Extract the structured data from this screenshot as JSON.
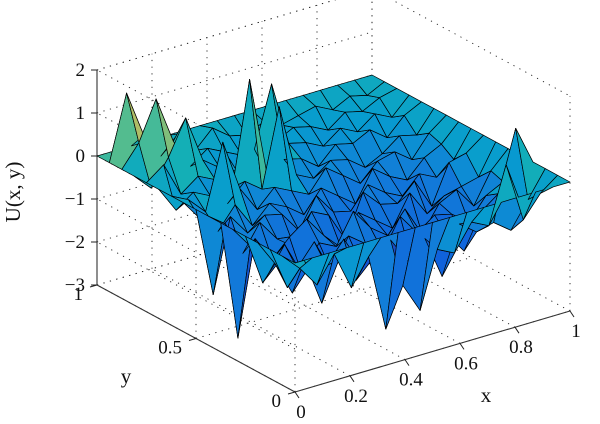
{
  "chart_data": {
    "type": "surface3d",
    "title": "",
    "xlabel": "x",
    "ylabel": "y",
    "zlabel": "U(x, y)",
    "xlim": [
      0,
      1
    ],
    "ylim": [
      0,
      1
    ],
    "zlim": [
      -3,
      2
    ],
    "x_ticks": [
      "0",
      "0.2",
      "0.4",
      "0.6",
      "0.8",
      "1"
    ],
    "y_ticks": [
      "0",
      "0.5",
      "1"
    ],
    "z_ticks": [
      "−3",
      "−2",
      "−1",
      "0",
      "1",
      "2"
    ],
    "grid": true,
    "colormap": "parula",
    "surface_edge_color": "#000000",
    "x": [
      0.0,
      0.0625,
      0.125,
      0.1875,
      0.25,
      0.3125,
      0.375,
      0.4375,
      0.5,
      0.5625,
      0.625,
      0.6875,
      0.75,
      0.8125,
      0.875,
      0.9375,
      1.0
    ],
    "y": [
      0.0,
      0.0625,
      0.125,
      0.1875,
      0.25,
      0.3125,
      0.375,
      0.4375,
      0.5,
      0.5625,
      0.625,
      0.6875,
      0.75,
      0.8125,
      0.875,
      0.9375,
      1.0
    ],
    "z": [
      [
        0.0,
        0.0,
        0.0,
        0.0,
        0.0,
        0.0,
        0.0,
        0.0,
        0.0,
        0.0,
        0.0,
        0.0,
        0.0,
        0.0,
        0.0,
        0.0,
        0.0
      ],
      [
        0.0,
        -0.4,
        -0.9,
        -0.3,
        -1.2,
        -0.6,
        -0.8,
        -1.5,
        -0.4,
        -0.9,
        -1.1,
        -0.5,
        -0.7,
        0.6,
        -0.8,
        -0.3,
        0.0
      ],
      [
        0.0,
        -1.0,
        -0.5,
        -1.6,
        -0.7,
        -1.3,
        -0.9,
        -0.6,
        -1.2,
        -0.8,
        -1.4,
        -0.7,
        -1.0,
        -0.9,
        1.1,
        -0.6,
        0.0
      ],
      [
        0.0,
        -0.6,
        -1.4,
        -0.9,
        -1.0,
        -0.5,
        -1.2,
        -1.3,
        -0.8,
        -1.5,
        -0.9,
        -1.1,
        -1.6,
        -0.8,
        -0.5,
        -0.9,
        0.0
      ],
      [
        0.0,
        -1.2,
        -0.8,
        -1.1,
        -0.6,
        -1.4,
        -0.7,
        -1.0,
        -1.3,
        -0.6,
        -1.1,
        -0.8,
        -0.9,
        -1.2,
        -0.7,
        -0.5,
        0.0
      ],
      [
        0.0,
        -0.5,
        -1.3,
        -0.7,
        -1.5,
        -0.9,
        -1.1,
        -0.4,
        -0.9,
        -1.2,
        -0.7,
        -1.4,
        -0.8,
        -0.6,
        -1.1,
        -0.4,
        0.0
      ],
      [
        0.0,
        -0.9,
        -0.6,
        -1.2,
        -0.8,
        -0.5,
        -1.0,
        -1.4,
        -0.7,
        -1.0,
        -1.3,
        -0.6,
        -1.2,
        -0.9,
        -0.8,
        -0.7,
        0.0
      ],
      [
        0.0,
        -0.3,
        -1.1,
        -0.5,
        -1.0,
        -1.3,
        -0.6,
        -0.8,
        -1.5,
        -0.5,
        -0.9,
        -1.0,
        -0.6,
        -1.3,
        -0.4,
        -0.3,
        0.0
      ],
      [
        0.0,
        -0.8,
        -0.4,
        -0.9,
        -0.6,
        -0.7,
        -1.2,
        -0.5,
        -1.0,
        -1.1,
        -0.6,
        -0.9,
        -1.1,
        -0.7,
        -0.9,
        -0.6,
        0.0
      ],
      [
        0.0,
        -0.5,
        -0.9,
        -0.4,
        -1.0,
        -0.6,
        -0.8,
        -1.1,
        -0.6,
        -0.9,
        -1.2,
        -0.5,
        -0.8,
        -1.0,
        -0.6,
        -0.4,
        0.0
      ],
      [
        0.0,
        -0.2,
        -0.6,
        -0.8,
        -0.3,
        -0.9,
        -0.5,
        -0.7,
        -0.9,
        -0.4,
        -0.7,
        -1.0,
        -0.6,
        -0.5,
        -0.8,
        -0.3,
        0.0
      ],
      [
        0.0,
        -0.6,
        -0.3,
        -0.5,
        -0.8,
        -0.4,
        -0.7,
        -0.3,
        -0.6,
        -0.8,
        -0.5,
        -0.6,
        -0.9,
        -0.7,
        -0.4,
        -0.5,
        0.0
      ],
      [
        0.0,
        0.3,
        -0.5,
        -0.2,
        -0.4,
        -0.7,
        -0.3,
        -0.6,
        -0.4,
        -0.5,
        -0.8,
        -0.4,
        -0.5,
        -0.3,
        -0.6,
        -0.2,
        0.0
      ],
      [
        0.0,
        -0.4,
        0.2,
        -0.5,
        -0.1,
        -0.4,
        -0.6,
        -0.2,
        -0.5,
        -0.3,
        -0.4,
        -0.6,
        -0.3,
        -0.5,
        -0.2,
        -0.4,
        0.0
      ],
      [
        0.0,
        0.5,
        -0.2,
        0.3,
        -0.4,
        -0.1,
        -0.3,
        -0.5,
        -0.2,
        -0.4,
        -0.2,
        -0.3,
        -0.5,
        -0.2,
        -0.3,
        -0.1,
        0.0
      ],
      [
        0.0,
        -0.1,
        0.4,
        -0.2,
        0.2,
        -0.3,
        0.1,
        -0.2,
        -0.3,
        -0.1,
        -0.3,
        -0.2,
        -0.1,
        -0.3,
        -0.1,
        -0.2,
        0.0
      ],
      [
        0.0,
        0.0,
        0.0,
        0.0,
        0.0,
        0.0,
        0.0,
        0.0,
        0.0,
        0.0,
        0.0,
        0.0,
        0.0,
        0.0,
        0.0,
        0.0,
        0.0
      ]
    ],
    "spikes": [
      {
        "x": 0.0625,
        "y": 0.9375,
        "z": 1.5
      },
      {
        "x": 0.125,
        "y": 0.875,
        "z": 1.4
      },
      {
        "x": 0.1875,
        "y": 0.8125,
        "z": 1.0
      },
      {
        "x": 0.375,
        "y": 0.75,
        "z": 1.7
      },
      {
        "x": 0.4375,
        "y": 0.6875,
        "z": 1.1
      },
      {
        "x": 0.5,
        "y": 0.8125,
        "z": 1.2
      },
      {
        "x": 0.1875,
        "y": 0.625,
        "z": 0.9
      },
      {
        "x": 0.0625,
        "y": 0.5,
        "z": -2.1
      },
      {
        "x": 0.0625,
        "y": 0.375,
        "z": -2.8
      },
      {
        "x": 0.9375,
        "y": 0.1875,
        "z": 0.9
      },
      {
        "x": 0.875,
        "y": 0.125,
        "z": -1.2
      },
      {
        "x": 0.5,
        "y": 0.0625,
        "z": -2.2
      },
      {
        "x": 0.375,
        "y": 0.0625,
        "z": -2.4
      },
      {
        "x": 0.625,
        "y": 0.125,
        "z": -1.8
      }
    ]
  }
}
